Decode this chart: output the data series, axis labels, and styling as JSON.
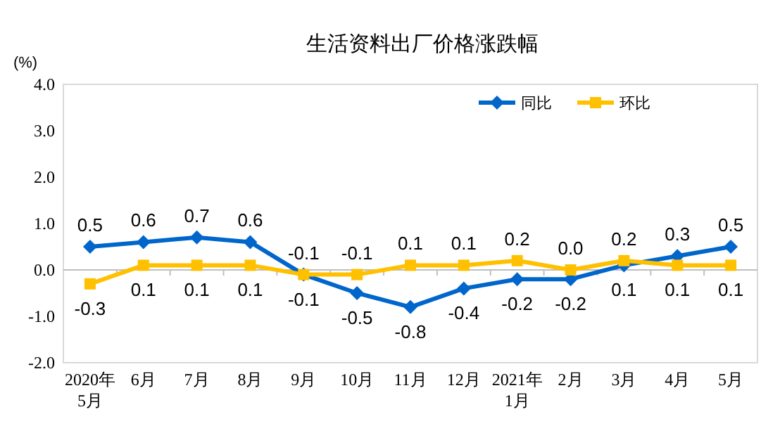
{
  "chart_data": {
    "type": "line",
    "title": "生活资料出厂价格涨跌幅",
    "ylabel": "(%)",
    "categories": [
      "2020年\n5月",
      "6月",
      "7月",
      "8月",
      "9月",
      "10月",
      "11月",
      "12月",
      "2021年\n1月",
      "2月",
      "3月",
      "4月",
      "5月"
    ],
    "series": [
      {
        "name": "同比",
        "color": "#0066cc",
        "marker": "diamond",
        "values": [
          0.5,
          0.6,
          0.7,
          0.6,
          -0.1,
          -0.5,
          -0.8,
          -0.4,
          -0.2,
          -0.2,
          0.1,
          0.3,
          0.5
        ],
        "value_labels": [
          "0.5",
          "0.6",
          "0.7",
          "0.6",
          "-0.1",
          "-0.5",
          "-0.8",
          "-0.4",
          "-0.2",
          "-0.2",
          "0.1",
          "0.3",
          "0.5"
        ]
      },
      {
        "name": "环比",
        "color": "#ffc000",
        "marker": "square",
        "values": [
          -0.3,
          0.1,
          0.1,
          0.1,
          -0.1,
          -0.1,
          0.1,
          0.1,
          0.2,
          0.0,
          0.2,
          0.1,
          0.1
        ],
        "value_labels": [
          "-0.3",
          "0.1",
          "0.1",
          "0.1",
          "-0.1",
          "-0.1",
          "0.1",
          "0.1",
          "0.2",
          "0.0",
          "0.2",
          "0.1",
          "0.1"
        ]
      }
    ],
    "ylim": [
      -2,
      4
    ],
    "yticks": [
      {
        "value": -2,
        "label": "-2.0"
      },
      {
        "value": -1,
        "label": "-1.0"
      },
      {
        "value": 0,
        "label": "0.0"
      },
      {
        "value": 1,
        "label": "1.0"
      },
      {
        "value": 2,
        "label": "2.0"
      },
      {
        "value": 3,
        "label": "3.0"
      },
      {
        "value": 4,
        "label": "4.0"
      }
    ],
    "legend": "top",
    "line_style": "solid"
  }
}
